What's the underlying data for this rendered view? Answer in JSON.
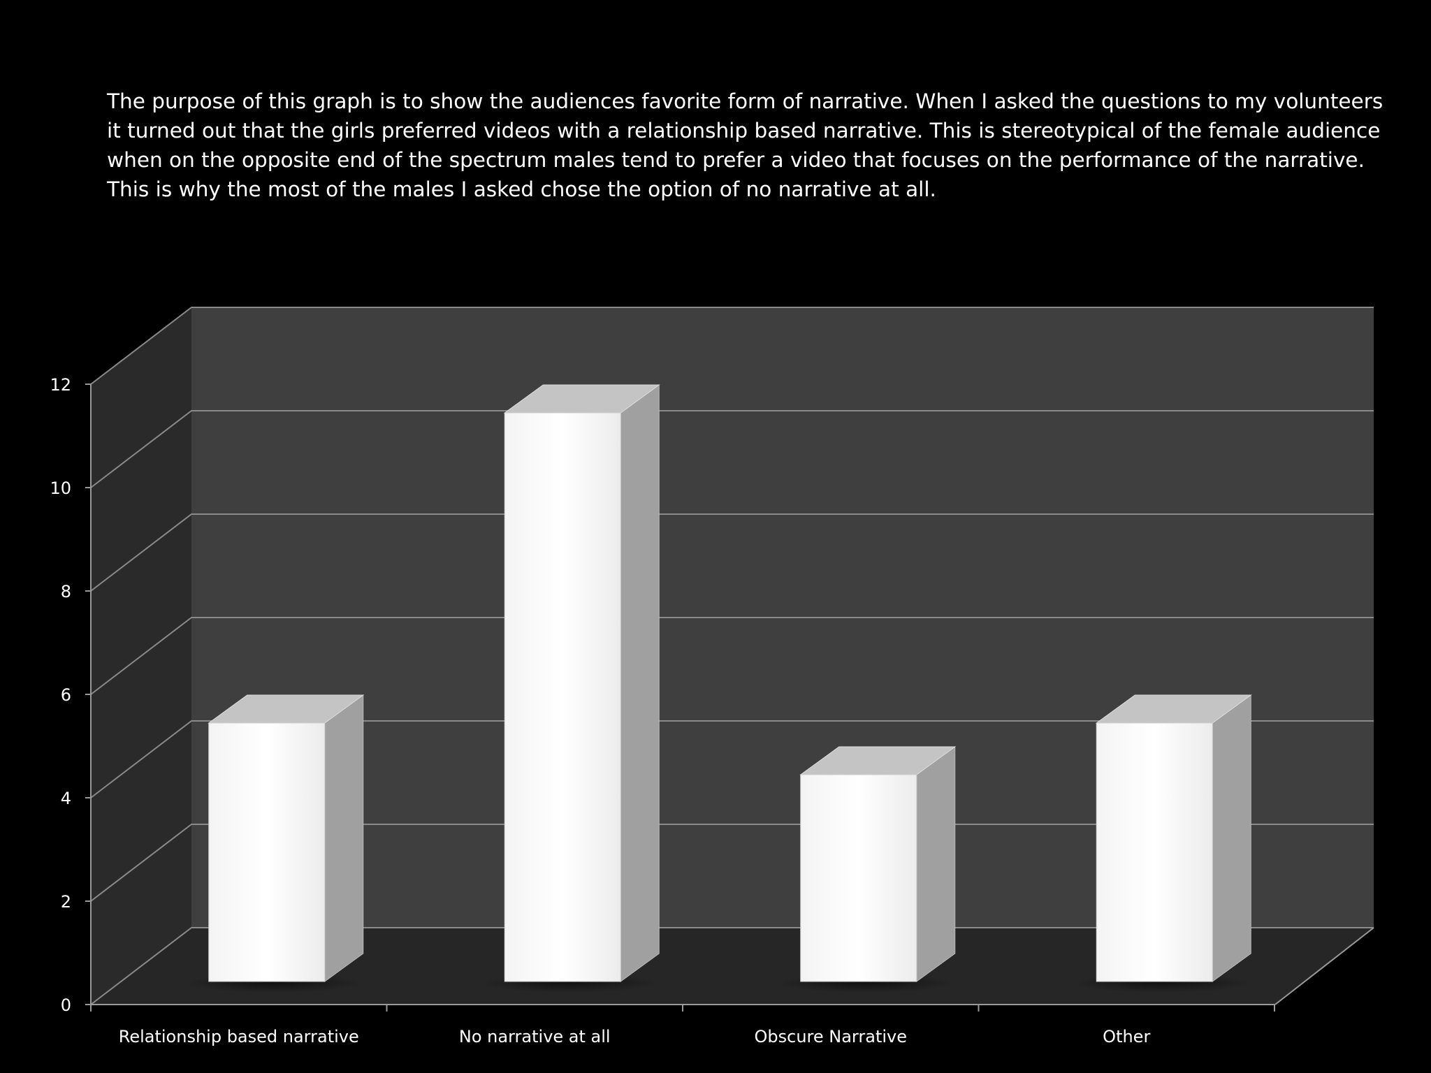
{
  "slide": {
    "description": "The purpose of this graph is to show the audiences favorite form of narrative. When I asked the questions to my volunteers it turned out that the girls preferred videos with a relationship based narrative. This is stereotypical of the female audience when on the opposite end of the spectrum males tend to prefer a video that focuses on the performance of the narrative. This is why the most of the males I asked chose the option of no narrative at all."
  },
  "chart_data": {
    "type": "bar",
    "style": "3d-column",
    "categories": [
      "Relationship based narrative",
      "No narrative at all",
      "Obscure Narrative",
      "Other"
    ],
    "values": [
      5,
      11,
      4,
      5
    ],
    "ylim": [
      0,
      12
    ],
    "yticks": [
      "0",
      "2",
      "4",
      "6",
      "8",
      "10",
      "12"
    ],
    "grid": true,
    "legend": "none",
    "colors": {
      "background": "#000000",
      "back_wall": "#3f3f3f",
      "side_wall": "#2a2a2a",
      "floor": "#262626",
      "gridline": "#8a8a8a",
      "bar_front": "#ffffff",
      "bar_side": "#a0a0a0",
      "bar_top": "#c4c4c4",
      "text": "#ffffff"
    }
  }
}
